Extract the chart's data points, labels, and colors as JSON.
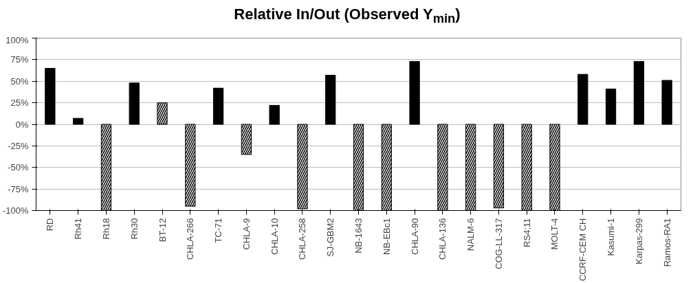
{
  "chart_data": {
    "type": "bar",
    "title": "Relative In/Out (Observed Y$_{min}$)",
    "categories": [
      "RD",
      "Rh41",
      "Rh18",
      "Rh30",
      "BT-12",
      "CHLA-266",
      "TC-71",
      "CHLA-9",
      "CHLA-10",
      "CHLA-258",
      "SJ-GBM2",
      "NB-1643",
      "NB-EBc1",
      "CHLA-90",
      "CHLA-136",
      "NALM-6",
      "COG-LL-317",
      "RS4;11",
      "MOLT-4",
      "CCRF-CEM CH",
      "Kasumi-1",
      "Karpas-299",
      "Ramos-RA1"
    ],
    "series": [
      {
        "color": "#000000",
        "values": [
          65,
          7,
          null,
          48,
          null,
          null,
          42,
          null,
          22,
          null,
          57,
          null,
          null,
          73,
          null,
          null,
          null,
          null,
          null,
          58,
          41,
          73,
          51
        ]
      },
      {
        "color": "#ffffff",
        "values": [
          null,
          null,
          -100,
          null,
          25,
          -95,
          null,
          -35,
          null,
          -98,
          null,
          -100,
          -100,
          null,
          -100,
          -100,
          -97,
          -100,
          -100,
          null,
          null,
          null,
          null
        ]
      }
    ],
    "ylim": [
      -100,
      100
    ],
    "yticks": [
      {
        "value": -100,
        "label": "-100%"
      },
      {
        "value": -75,
        "label": "-75%"
      },
      {
        "value": -50,
        "label": "-50%"
      },
      {
        "value": -25,
        "label": "-25%"
      },
      {
        "value": 0,
        "label": "0%"
      },
      {
        "value": 25,
        "label": "25%"
      },
      {
        "value": 50,
        "label": "50%"
      },
      {
        "value": 75,
        "label": "75%"
      },
      {
        "value": 100,
        "label": "100%"
      }
    ],
    "grid": "y"
  }
}
